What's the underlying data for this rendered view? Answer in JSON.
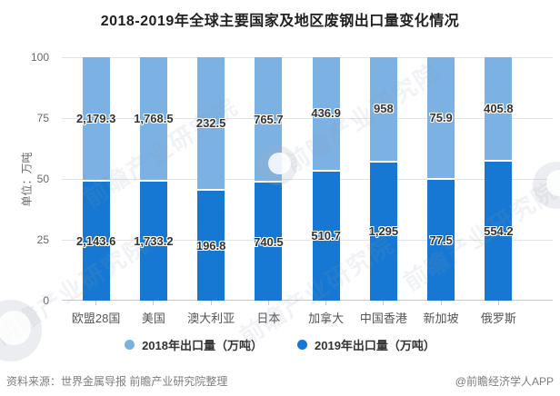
{
  "title": "2018-2019年全球主要国家及地区废钢出口量变化情况",
  "y_axis": {
    "unit_label": "单位：万吨",
    "ticks": [
      "100",
      "75",
      "50",
      "25",
      "0"
    ]
  },
  "chart_data": {
    "type": "bar",
    "stacked": "percent",
    "title": "2018-2019年全球主要国家及地区废钢出口量变化情况",
    "ylabel": "单位：万吨",
    "ylim": [
      0,
      100
    ],
    "grid": true,
    "legend_position": "bottom",
    "categories": [
      "欧盟28国",
      "美国",
      "澳大利亚",
      "日本",
      "加拿大",
      "中国香港",
      "新加坡",
      "俄罗斯"
    ],
    "series": [
      {
        "name": "2018年出口量（万吨）",
        "color": "#7CB1E3",
        "values": [
          2179.3,
          1768.5,
          232.5,
          765.7,
          436.9,
          958,
          75.9,
          405.8
        ],
        "labels": [
          "2,179.3",
          "1,768.5",
          "232.5",
          "765.7",
          "436.9",
          "958",
          "75.9",
          "405.8"
        ]
      },
      {
        "name": "2019年出口量（万吨）",
        "color": "#1678D2",
        "values": [
          2143.6,
          1733.2,
          196.8,
          740.5,
          510.7,
          1295,
          77.5,
          554.2
        ],
        "labels": [
          "2,143.6",
          "1,733.2",
          "196.8",
          "740.5",
          "510.7",
          "1,295",
          "77.5",
          "554.2"
        ]
      }
    ]
  },
  "footer": {
    "source": "资料来源：世界金属导报 前瞻产业研究院整理",
    "credit": "@前瞻经济学人APP"
  },
  "watermark": {
    "text": "前瞻产业研究院"
  }
}
